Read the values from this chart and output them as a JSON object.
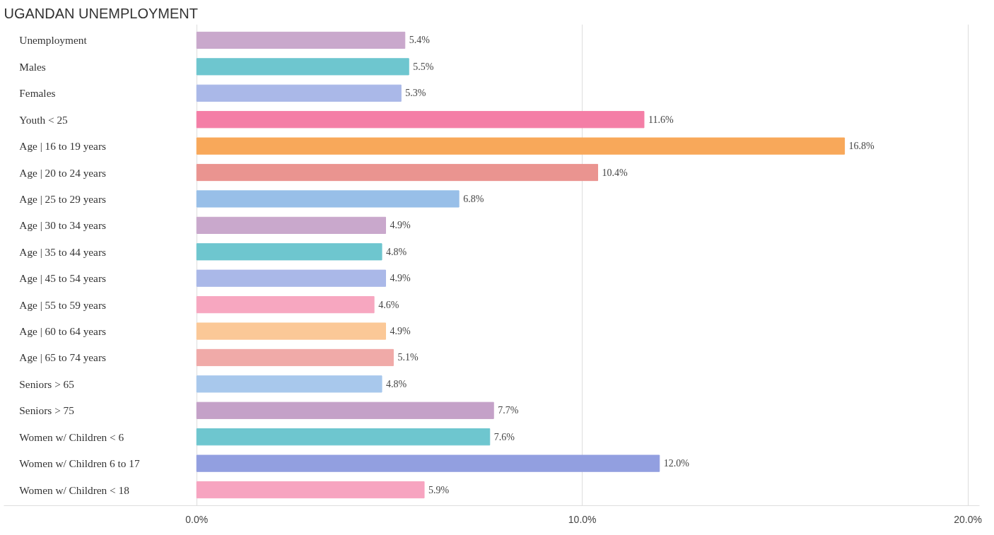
{
  "chart_data": {
    "type": "bar",
    "orientation": "horizontal",
    "title": "UGANDAN UNEMPLOYMENT",
    "categories": [
      "Unemployment",
      "Males",
      "Females",
      "Youth < 25",
      "Age | 16 to 19 years",
      "Age | 20 to 24 years",
      "Age | 25 to 29 years",
      "Age | 30 to 34 years",
      "Age | 35 to 44 years",
      "Age | 45 to 54 years",
      "Age | 55 to 59 years",
      "Age | 60 to 64 years",
      "Age | 65 to 74 years",
      "Seniors > 65",
      "Seniors > 75",
      "Women w/ Children < 6",
      "Women w/ Children 6 to 17",
      "Women w/ Children < 18"
    ],
    "values": [
      5.4,
      5.5,
      5.3,
      11.6,
      16.8,
      10.4,
      6.8,
      4.9,
      4.8,
      4.9,
      4.6,
      4.9,
      5.1,
      4.8,
      7.7,
      7.6,
      12.0,
      5.9
    ],
    "value_labels": [
      "5.4%",
      "5.5%",
      "5.3%",
      "11.6%",
      "16.8%",
      "10.4%",
      "6.8%",
      "4.9%",
      "4.8%",
      "4.9%",
      "4.6%",
      "4.9%",
      "5.1%",
      "4.8%",
      "7.7%",
      "7.6%",
      "12.0%",
      "5.9%"
    ],
    "colors": [
      "#c9a8cc",
      "#6ec6cf",
      "#aab8e8",
      "#f47ea6",
      "#f8a85a",
      "#ea9490",
      "#98bfe8",
      "#c9a8cc",
      "#6ec6cf",
      "#aab8e8",
      "#f7a7c0",
      "#fbc897",
      "#f0aaa8",
      "#a8c8ec",
      "#c4a1c8",
      "#6ec6cf",
      "#929fe0",
      "#f7a4c0"
    ],
    "xlim": [
      -5,
      20.3
    ],
    "xticks": [
      {
        "value": 0,
        "label": "0.0%"
      },
      {
        "value": 10,
        "label": "10.0%"
      },
      {
        "value": 20,
        "label": "20.0%"
      }
    ],
    "grid": "x"
  }
}
